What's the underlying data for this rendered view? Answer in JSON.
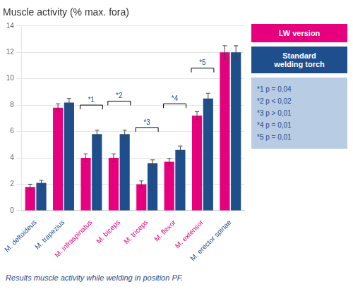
{
  "chart_data": {
    "type": "bar",
    "title": "Muscle activity (% max. fora)",
    "categories": [
      "M. deltoideus",
      "M. trapezius",
      "M. infraspinatus",
      "M. biceps",
      "M. triceps",
      "M. flexor",
      "M. extensor",
      "M. erector spinae"
    ],
    "series": [
      {
        "name": "LW version",
        "color": "#e6007e",
        "values": [
          1.8,
          7.8,
          4.0,
          4.0,
          2.0,
          3.7,
          7.2,
          12.0
        ],
        "errors": [
          0.2,
          0.3,
          0.3,
          0.3,
          0.25,
          0.25,
          0.3,
          0.5
        ]
      },
      {
        "name": "Standard\nwelding torch",
        "color": "#1f4e8c",
        "values": [
          2.1,
          8.2,
          5.8,
          5.8,
          3.6,
          4.6,
          8.5,
          12.0
        ],
        "errors": [
          0.2,
          0.3,
          0.3,
          0.3,
          0.25,
          0.3,
          0.4,
          0.5
        ]
      }
    ],
    "tick_colors": [
      "#1f4e8c",
      "#1f4e8c",
      "#e6007e",
      "#e6007e",
      "#e6007e",
      "#e6007e",
      "#e6007e",
      "#1f4e8c"
    ],
    "ylim": [
      0,
      14
    ],
    "yticks": [
      0,
      2,
      4,
      6,
      8,
      10,
      12,
      14
    ],
    "grid": true,
    "legend": "right",
    "annotations": [
      {
        "x": "M. infraspinatus",
        "y": 8.0,
        "text": "*1"
      },
      {
        "x": "M. biceps",
        "y": 8.3,
        "text": "*2"
      },
      {
        "x": "M. triceps",
        "y": 6.3,
        "text": "*3"
      },
      {
        "x": "M. flexor",
        "y": 8.1,
        "text": "*4"
      },
      {
        "x": "M. extensor",
        "y": 10.8,
        "text": "*5"
      }
    ],
    "notes": [
      "*1 p = 0,04",
      "*2 p < 0,02",
      "*3 p > 0,01",
      "*4 p = 0,01",
      "*5 p = 0,01"
    ],
    "footer": "Results muscle activity while welding in position PF."
  }
}
